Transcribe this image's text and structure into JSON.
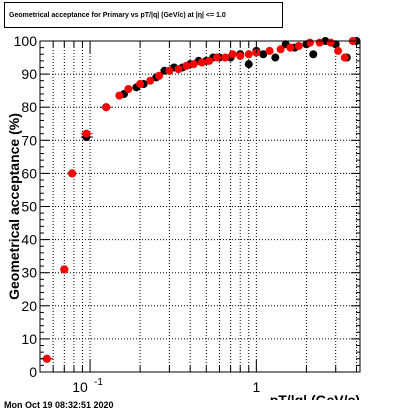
{
  "chart_data": {
    "type": "scatter",
    "title": "Geometrical acceptance for Primary vs pT/|q| (GeV/c) at |η| <= 1.0",
    "xlabel": "pT/|q| (GeV/c)",
    "ylabel": "Geometrical acceptance (%)",
    "xscale": "log",
    "xlim": [
      0.05,
      4.2
    ],
    "ylim": [
      0,
      100
    ],
    "x_tick_labels": [
      {
        "value": 0.1,
        "base": "10",
        "exp": "-1"
      },
      {
        "value": 1,
        "text": "1"
      }
    ],
    "y_ticks": [
      0,
      10,
      20,
      30,
      40,
      50,
      60,
      70,
      80,
      90,
      100
    ],
    "grid": true,
    "series": [
      {
        "color": "#000000",
        "points": [
          {
            "x": 0.055,
            "y": 4,
            "xerr": [
              0.05,
              0.06
            ]
          },
          {
            "x": 0.07,
            "y": 31,
            "xerr": [
              0.067,
              0.074
            ]
          },
          {
            "x": 0.078,
            "y": 60
          },
          {
            "x": 0.095,
            "y": 71,
            "xerr": [
              0.088,
              0.104
            ]
          },
          {
            "x": 0.125,
            "y": 80,
            "xerr": [
              0.115,
              0.135
            ]
          },
          {
            "x": 0.16,
            "y": 84
          },
          {
            "x": 0.19,
            "y": 86
          },
          {
            "x": 0.21,
            "y": 87
          },
          {
            "x": 0.25,
            "y": 89
          },
          {
            "x": 0.28,
            "y": 91
          },
          {
            "x": 0.32,
            "y": 92
          },
          {
            "x": 0.36,
            "y": 92
          },
          {
            "x": 0.4,
            "y": 93
          },
          {
            "x": 0.45,
            "y": 94
          },
          {
            "x": 0.5,
            "y": 94
          },
          {
            "x": 0.55,
            "y": 95
          },
          {
            "x": 0.6,
            "y": 95
          },
          {
            "x": 0.7,
            "y": 95
          },
          {
            "x": 0.8,
            "y": 96
          },
          {
            "x": 0.9,
            "y": 93
          },
          {
            "x": 1.0,
            "y": 97
          },
          {
            "x": 1.1,
            "y": 96
          },
          {
            "x": 1.3,
            "y": 95
          },
          {
            "x": 1.5,
            "y": 99
          },
          {
            "x": 1.7,
            "y": 98
          },
          {
            "x": 2.0,
            "y": 99
          },
          {
            "x": 2.2,
            "y": 96
          },
          {
            "x": 2.6,
            "y": 100
          },
          {
            "x": 3.0,
            "y": 99
          },
          {
            "x": 3.5,
            "y": 95
          },
          {
            "x": 4.0,
            "y": 100
          }
        ]
      },
      {
        "color": "#ff0000",
        "points": [
          {
            "x": 0.055,
            "y": 4,
            "xerr": [
              0.05,
              0.06
            ]
          },
          {
            "x": 0.07,
            "y": 31
          },
          {
            "x": 0.078,
            "y": 60
          },
          {
            "x": 0.095,
            "y": 72,
            "xerr": [
              0.088,
              0.104
            ]
          },
          {
            "x": 0.125,
            "y": 80
          },
          {
            "x": 0.15,
            "y": 83.5
          },
          {
            "x": 0.17,
            "y": 85.5
          },
          {
            "x": 0.2,
            "y": 87
          },
          {
            "x": 0.23,
            "y": 88
          },
          {
            "x": 0.26,
            "y": 89.5
          },
          {
            "x": 0.3,
            "y": 91
          },
          {
            "x": 0.34,
            "y": 91.5
          },
          {
            "x": 0.38,
            "y": 92.5
          },
          {
            "x": 0.42,
            "y": 93
          },
          {
            "x": 0.47,
            "y": 93.5
          },
          {
            "x": 0.52,
            "y": 94
          },
          {
            "x": 0.58,
            "y": 95
          },
          {
            "x": 0.65,
            "y": 95
          },
          {
            "x": 0.72,
            "y": 96
          },
          {
            "x": 0.8,
            "y": 95.5
          },
          {
            "x": 0.9,
            "y": 96
          },
          {
            "x": 1.0,
            "y": 96.5
          },
          {
            "x": 1.2,
            "y": 97
          },
          {
            "x": 1.4,
            "y": 97.5
          },
          {
            "x": 1.6,
            "y": 98
          },
          {
            "x": 1.8,
            "y": 98.5
          },
          {
            "x": 2.1,
            "y": 99.5
          },
          {
            "x": 2.4,
            "y": 99.5
          },
          {
            "x": 2.8,
            "y": 99.5
          },
          {
            "x": 3.1,
            "y": 97
          },
          {
            "x": 3.4,
            "y": 95
          },
          {
            "x": 3.8,
            "y": 100
          }
        ]
      }
    ]
  },
  "footer": {
    "timestamp": "Mon Oct 19 08:32:51 2020"
  }
}
